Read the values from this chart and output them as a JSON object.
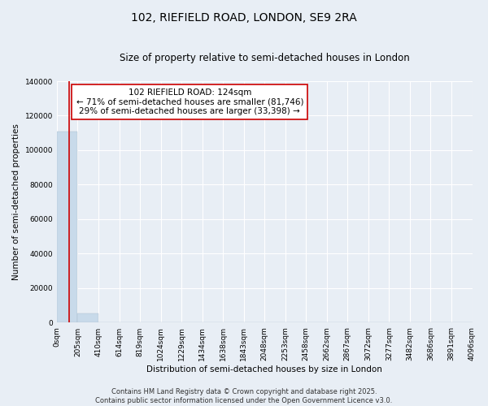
{
  "title": "102, RIEFIELD ROAD, LONDON, SE9 2RA",
  "subtitle": "Size of property relative to semi-detached houses in London",
  "xlabel": "Distribution of semi-detached houses by size in London",
  "ylabel": "Number of semi-detached properties",
  "bar_values": [
    111000,
    5200,
    200,
    80,
    50,
    30,
    20,
    15,
    12,
    10,
    8,
    7,
    6,
    5,
    4,
    3,
    3,
    2,
    2,
    1
  ],
  "bin_labels": [
    "0sqm",
    "205sqm",
    "410sqm",
    "614sqm",
    "819sqm",
    "1024sqm",
    "1229sqm",
    "1434sqm",
    "1638sqm",
    "1843sqm",
    "2048sqm",
    "2253sqm",
    "2458sqm",
    "2662sqm",
    "2867sqm",
    "3072sqm",
    "3277sqm",
    "3482sqm",
    "3686sqm",
    "3891sqm",
    "4096sqm"
  ],
  "bar_color": "#c8daea",
  "marker_line_color": "#cc0000",
  "annotation_text": "102 RIEFIELD ROAD: 124sqm\n← 71% of semi-detached houses are smaller (81,746)\n29% of semi-detached houses are larger (33,398) →",
  "annotation_box_color": "#ffffff",
  "annotation_box_edge": "#cc0000",
  "ylim": [
    0,
    140000
  ],
  "yticks": [
    0,
    20000,
    40000,
    60000,
    80000,
    100000,
    120000,
    140000
  ],
  "background_color": "#e8eef5",
  "footer_line1": "Contains HM Land Registry data © Crown copyright and database right 2025.",
  "footer_line2": "Contains public sector information licensed under the Open Government Licence v3.0.",
  "title_fontsize": 10,
  "subtitle_fontsize": 8.5,
  "axis_label_fontsize": 7.5,
  "tick_fontsize": 6.5,
  "annotation_fontsize": 7.5,
  "footer_fontsize": 6
}
